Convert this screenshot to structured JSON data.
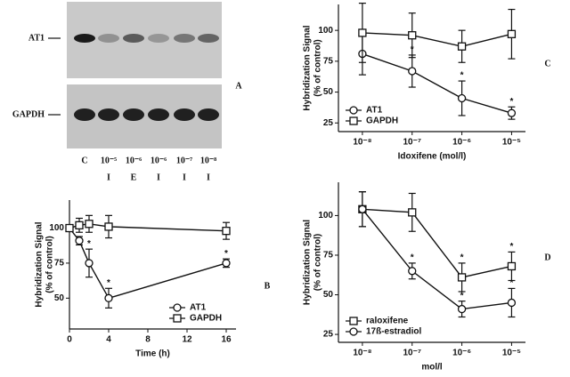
{
  "blot": {
    "panel": "A",
    "bands": [
      "AT1",
      "GAPDH"
    ],
    "lanes": [
      "C",
      "10⁻⁵",
      "10⁻⁶",
      "10⁻⁶",
      "10⁻⁷",
      "10⁻⁸"
    ],
    "treatments": [
      "I",
      "E",
      "I",
      "I",
      "I"
    ]
  },
  "chart_data": [
    {
      "type": "line",
      "panel": "B",
      "xlabel": "Time (h)",
      "ylabel": [
        "Hybridization Signal",
        "(% of control)"
      ],
      "xscale": "linear",
      "x": [
        0,
        1,
        2,
        4,
        16
      ],
      "xlim": [
        0,
        17
      ],
      "xticks": [
        0,
        4,
        8,
        12,
        16
      ],
      "ylim": [
        28,
        120
      ],
      "yticks": [
        50,
        75,
        100
      ],
      "legend": "lower right",
      "series": [
        {
          "name": "AT1",
          "marker": "circle",
          "color": "#111111",
          "values": [
            100,
            91,
            75,
            50,
            75
          ],
          "errors": [
            0,
            3,
            10,
            7,
            3
          ],
          "significance": [
            null,
            null,
            "*",
            "*",
            "*"
          ]
        },
        {
          "name": "GAPDH",
          "marker": "square",
          "color": "#111111",
          "values": [
            100,
            102,
            103,
            101,
            98
          ],
          "errors": [
            0,
            5,
            6,
            8,
            6
          ],
          "significance": [
            null,
            null,
            null,
            null,
            null
          ]
        }
      ]
    },
    {
      "type": "line",
      "panel": "C",
      "xlabel": "Idoxifene (mol/l)",
      "ylabel": [
        "Hybridization Signal",
        "(% of control)"
      ],
      "xscale": "log",
      "x": [
        1e-08,
        1e-07,
        1e-06,
        1e-05
      ],
      "xlim": [
        3.3e-09,
        1.9e-05
      ],
      "xticks": [
        {
          "value": 1e-08,
          "label": "10⁻⁸"
        },
        {
          "value": 1e-07,
          "label": "10⁻⁷"
        },
        {
          "value": 1e-06,
          "label": "10⁻⁶"
        },
        {
          "value": 1e-05,
          "label": "10⁻⁵"
        }
      ],
      "ylim": [
        18,
        121
      ],
      "yticks": [
        25,
        50,
        75,
        100
      ],
      "legend": "lower left",
      "series": [
        {
          "name": "AT1",
          "marker": "circle",
          "color": "#111111",
          "values": [
            81,
            67,
            45,
            33
          ],
          "errors": [
            17,
            13,
            14,
            5
          ],
          "significance": [
            null,
            "*",
            "*",
            "*"
          ]
        },
        {
          "name": "GAPDH",
          "marker": "square",
          "color": "#111111",
          "values": [
            98,
            96,
            87,
            97
          ],
          "errors": [
            24,
            18,
            13,
            20
          ],
          "significance": [
            null,
            null,
            null,
            null
          ]
        }
      ]
    },
    {
      "type": "line",
      "panel": "D",
      "xlabel": "mol/l",
      "ylabel": [
        "Hybridization Signal",
        "(% of control)"
      ],
      "xscale": "log",
      "x": [
        1e-08,
        1e-07,
        1e-06,
        1e-05
      ],
      "xlim": [
        3.3e-09,
        1.9e-05
      ],
      "xticks": [
        {
          "value": 1e-08,
          "label": "10⁻⁸"
        },
        {
          "value": 1e-07,
          "label": "10⁻⁷"
        },
        {
          "value": 1e-06,
          "label": "10⁻⁶"
        },
        {
          "value": 1e-05,
          "label": "10⁻⁵"
        }
      ],
      "ylim": [
        20,
        121
      ],
      "yticks": [
        25,
        50,
        75,
        100
      ],
      "legend": "lower left",
      "series": [
        {
          "name": "raloxifene",
          "marker": "square",
          "color": "#111111",
          "values": [
            104,
            102,
            61,
            68
          ],
          "errors": [
            11,
            12,
            9,
            9
          ],
          "significance": [
            null,
            null,
            "*",
            "*"
          ]
        },
        {
          "name": "17ß-estradiol",
          "marker": "circle",
          "color": "#111111",
          "values": [
            104,
            65,
            41,
            45
          ],
          "errors": [
            11,
            5,
            5,
            9
          ],
          "significance": [
            null,
            "*",
            "*",
            "*"
          ]
        }
      ]
    }
  ]
}
